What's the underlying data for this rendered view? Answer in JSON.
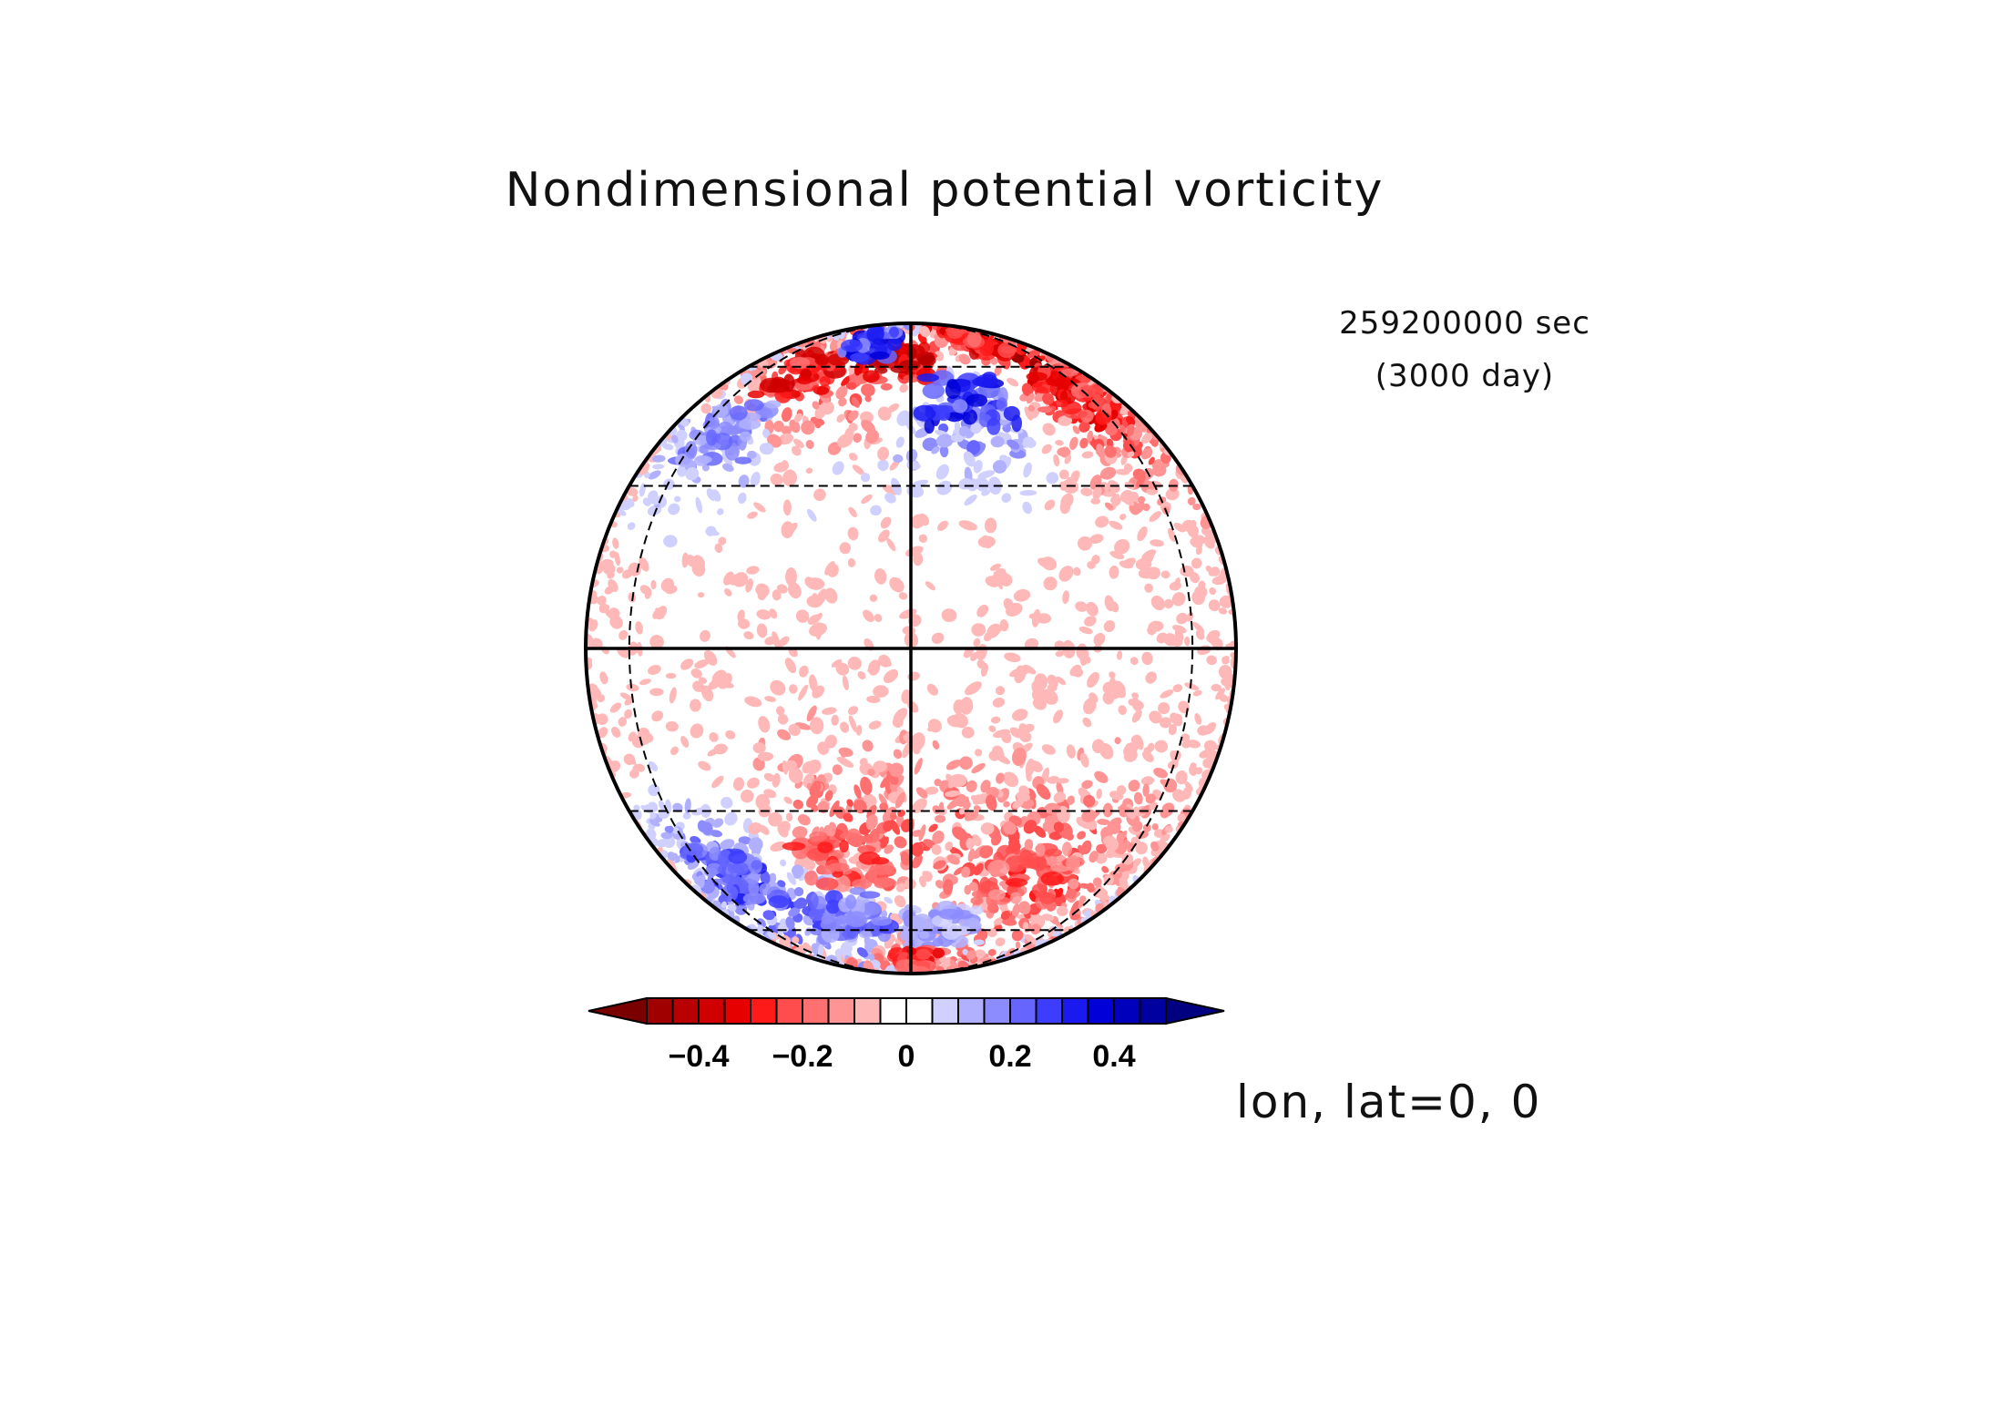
{
  "chart_data": {
    "type": "heatmap",
    "title": "Nondimensional potential vorticity",
    "time_label": "259200000 sec",
    "time_sublabel": "(3000 day)",
    "projection_label": "lon, lat=0, 0",
    "projection": "orthographic",
    "center_lon": 0,
    "center_lat": 0,
    "graticule": {
      "lat_lines": [
        -60,
        -30,
        0,
        30,
        60
      ],
      "lon_lines": [
        -60,
        0,
        60
      ],
      "solid": [
        "equator",
        "central meridian"
      ]
    },
    "colorbar": {
      "min": -0.5,
      "max": 0.5,
      "step": 0.05,
      "extend": "both",
      "ticks": [
        -0.4,
        -0.2,
        0,
        0.2,
        0.4
      ],
      "tick_labels": [
        "−0.4",
        "−0.2",
        "0",
        "0.2",
        "0.4"
      ],
      "low_extend_color": "#7a0000",
      "high_extend_color": "#000080",
      "colors": [
        "#a00000",
        "#b80000",
        "#d00000",
        "#e60000",
        "#ff1a1a",
        "#ff4d4d",
        "#ff7070",
        "#ff9494",
        "#ffb8b8",
        "#ffffff",
        "#ffffff",
        "#d0d0ff",
        "#b0b0ff",
        "#8c8cff",
        "#6666ff",
        "#3d3dff",
        "#1a1af0",
        "#0000d8",
        "#0000bc",
        "#0000a0"
      ]
    },
    "field_description": {
      "features": [
        {
          "lon": -5,
          "lat": 62,
          "value": -0.35
        },
        {
          "lon": -38,
          "lat": 58,
          "value": -0.3
        },
        {
          "lon": 38,
          "lat": 72,
          "value": -0.3
        },
        {
          "lon": 55,
          "lat": 52,
          "value": -0.28
        },
        {
          "lon": -20,
          "lat": 70,
          "value": 0.3
        },
        {
          "lon": 15,
          "lat": 50,
          "value": 0.3
        },
        {
          "lon": -50,
          "lat": 42,
          "value": 0.18
        },
        {
          "lon": -15,
          "lat": -40,
          "value": -0.22
        },
        {
          "lon": 30,
          "lat": -45,
          "value": -0.2
        },
        {
          "lon": -50,
          "lat": -45,
          "value": 0.25
        },
        {
          "lon": -20,
          "lat": -55,
          "value": 0.22
        },
        {
          "lon": 10,
          "lat": -60,
          "value": 0.15
        },
        {
          "lon": 5,
          "lat": -75,
          "value": -0.25
        }
      ]
    }
  }
}
